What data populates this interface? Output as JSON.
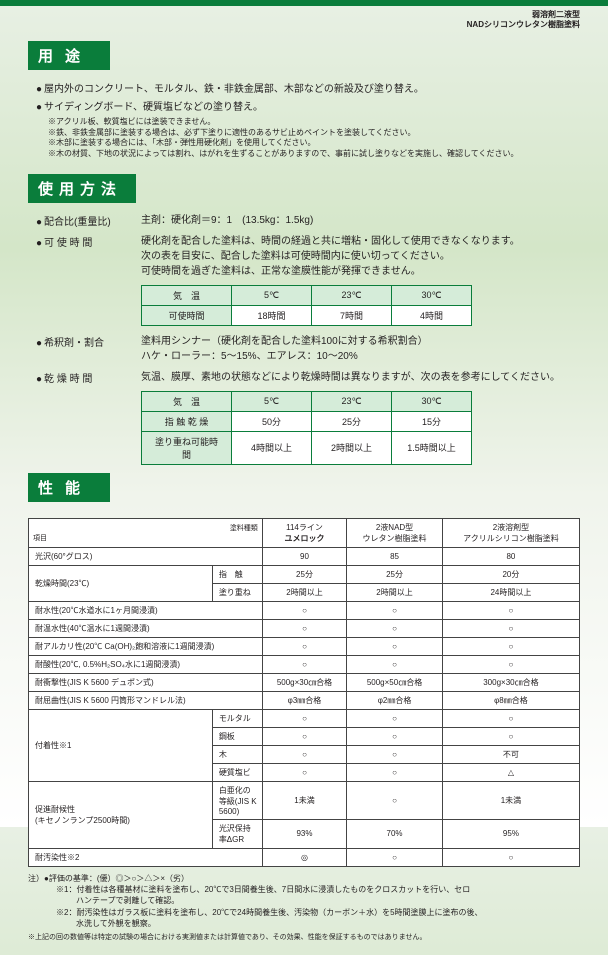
{
  "topRight": {
    "l1": "弱溶剤二液型",
    "l2": "NADシリコンウレタン樹脂塗料"
  },
  "sections": {
    "use": "用途",
    "method": "使用方法",
    "perf": "性能"
  },
  "use": {
    "bullets": [
      "屋内外のコンクリート、モルタル、鉄・非鉄金属部、木部などの新設及び塗り替え。",
      "サイディングボード、硬質塩ビなどの塗り替え。"
    ],
    "notes": [
      "アクリル板、軟質塩ビには塗装できません。",
      "鉄、非鉄金属部に塗装する場合は、必ず下塗りに適性のあるサビ止めペイントを塗装してください。",
      "木部に塗装する場合には、「木部・弾性用硬化剤」を使用してください。",
      "木の材質、下地の状況によっては割れ、はがれを生ずることがありますので、事前に試し塗りなどを実施し、確認してください。"
    ]
  },
  "method": {
    "ratio": {
      "k": "配合比(重量比)",
      "v": "主剤：硬化剤＝9：1　(13.5kg：1.5kg)"
    },
    "pot": {
      "k": "可 使 時 間",
      "v1": "硬化剤を配合した塗料は、時間の経過と共に増粘・固化して使用できなくなります。",
      "v2": "次の表を目安に、配合した塗料は可使時間内に使い切ってください。",
      "v3": "可使時間を過ぎた塗料は、正常な塗膜性能が発揮できません。"
    },
    "potTable": {
      "head": [
        "気　温",
        "5℃",
        "23℃",
        "30℃"
      ],
      "row": [
        "可使時間",
        "18時間",
        "7時間",
        "4時間"
      ]
    },
    "thin": {
      "k": "希釈剤・割合",
      "v1": "塗料用シンナー（硬化剤を配合した塗料100に対する希釈割合）",
      "v2": "ハケ・ローラー：5～15%、エアレス：10～20%"
    },
    "dry": {
      "k": "乾 燥 時 間",
      "v": "気温、膜厚、素地の状態などにより乾燥時間は異なりますが、次の表を参考にしてください。"
    },
    "dryTable": {
      "head": [
        "気　温",
        "5℃",
        "23℃",
        "30℃"
      ],
      "r1": [
        "指 触 乾 燥",
        "50分",
        "25分",
        "15分"
      ],
      "r2": [
        "塗り重ね可能時間",
        "4時間以上",
        "2時間以上",
        "1.5時間以上"
      ]
    }
  },
  "perf": {
    "head": {
      "c0": "項目",
      "c0b": "塗料種類",
      "c1a": "114ライン",
      "c1b": "ユメロック",
      "c2a": "2液NAD型",
      "c2b": "ウレタン樹脂塗料",
      "c3a": "2液溶剤型",
      "c3b": "アクリルシリコン樹脂塗料"
    },
    "rows": [
      [
        "光沢(60°グロス)",
        "",
        "90",
        "85",
        "80"
      ],
      [
        "乾燥時間(23℃)",
        "指　触",
        "25分",
        "25分",
        "20分"
      ],
      [
        "",
        "塗り重ね",
        "2時間以上",
        "2時間以上",
        "24時間以上"
      ],
      [
        "耐水性(20℃水道水に1ヶ月間浸漬)",
        "",
        "○",
        "○",
        "○"
      ],
      [
        "耐温水性(40℃温水に1週間浸漬)",
        "",
        "○",
        "○",
        "○"
      ],
      [
        "耐アルカリ性(20℃ Ca(OH)₂飽和溶液に1週間浸漬)",
        "",
        "○",
        "○",
        "○"
      ],
      [
        "耐酸性(20℃, 0.5%H₂SO₄水に1週間浸漬)",
        "",
        "○",
        "○",
        "○"
      ],
      [
        "耐衝撃性(JIS K 5600 デュポン式)",
        "",
        "500g×30㎝合格",
        "500g×50㎝合格",
        "300g×30㎝合格"
      ],
      [
        "耐屈曲性(JIS K 5600 円筒形マンドレル法)",
        "",
        "φ3㎜合格",
        "φ2㎜合格",
        "φ8㎜合格"
      ],
      [
        "付着性※1",
        "モルタル",
        "○",
        "○",
        "○"
      ],
      [
        "",
        "鋼板",
        "○",
        "○",
        "○"
      ],
      [
        "",
        "木",
        "○",
        "○",
        "不可"
      ],
      [
        "",
        "硬質塩ビ",
        "○",
        "○",
        "△"
      ],
      [
        "促進耐候性\\n(キセノンランプ2500時間)",
        "白亜化の等級(JIS K 5600)",
        "1未満",
        "○",
        "1未満"
      ],
      [
        "",
        "光沢保持率ΔGR",
        "93%",
        "70%",
        "95%"
      ],
      [
        "耐汚染性※2",
        "",
        "◎",
        "○",
        "○"
      ]
    ],
    "footHead": "注）●評価の基準：(優）◎＞○＞△＞×（劣）",
    "foot1a": "※1：付着性は各種基材に塗料を塗布し、20℃で3日間養生後、7日間水に浸漬したものをクロスカットを行い、セロ",
    "foot1b": "ハンテープで剥離して確認。",
    "foot2a": "※2：耐汚染性はガラス板に塗料を塗布し、20℃で24時間養生後、汚染物（カーボン＋水）を5時間塗膜上に塗布の後、",
    "foot2b": "水洗して外観を観察。",
    "footBottom": "※上記の回の数値等は特定の試験の場合における実測値または計算値であり、その効果、性能を保証するものではありません。"
  }
}
